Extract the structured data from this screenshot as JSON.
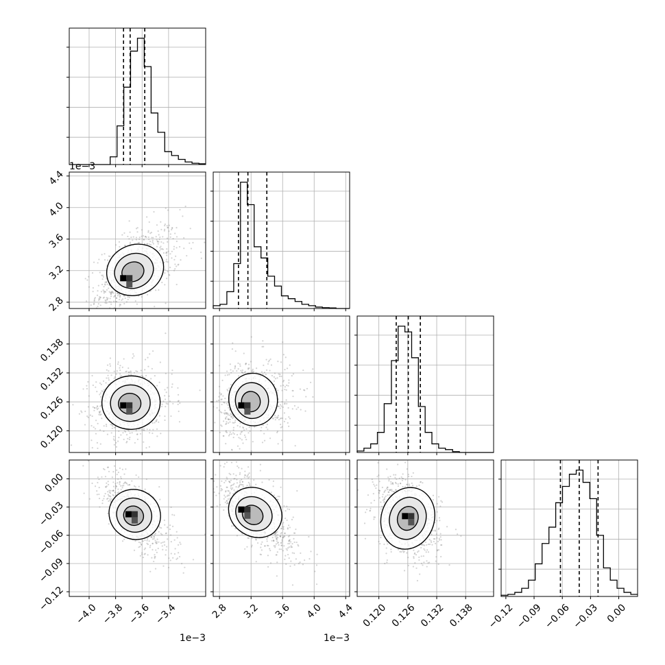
{
  "chart_data": {
    "type": "corner",
    "title": "",
    "colors": {
      "line": "#000000",
      "grid": "#b0b0b0",
      "points": "#808080",
      "background": "#ffffff"
    },
    "parameters": [
      {
        "index": 0,
        "range": [
          -4.15,
          -3.12
        ],
        "ticks": [
          -4.0,
          -3.8,
          -3.6,
          -3.4
        ],
        "tick_labels": [
          "−4.0",
          "−3.8",
          "−3.6",
          "−3.4"
        ],
        "offset_label": "1e−3",
        "scale": 0.001,
        "quantiles": [
          -3.74,
          -3.69,
          -3.58
        ]
      },
      {
        "index": 1,
        "range": [
          2.72,
          4.45
        ],
        "ticks": [
          2.8,
          3.2,
          3.6,
          4.0,
          4.4
        ],
        "tick_labels": [
          "2.8",
          "3.2",
          "3.6",
          "4.0",
          "4.4"
        ],
        "offset_label": "1e−3",
        "scale": 0.001,
        "quantiles": [
          3.04,
          3.16,
          3.4
        ]
      },
      {
        "index": 2,
        "range": [
          0.1155,
          0.1438
        ],
        "ticks": [
          0.12,
          0.126,
          0.132,
          0.138
        ],
        "tick_labels": [
          "0.120",
          "0.126",
          "0.132",
          "0.138"
        ],
        "offset_label": "",
        "scale": 1,
        "quantiles": [
          0.1236,
          0.1261,
          0.1286
        ]
      },
      {
        "index": 3,
        "range": [
          -0.125,
          0.02
        ],
        "ticks": [
          -0.12,
          -0.09,
          -0.06,
          -0.03,
          0.0
        ],
        "tick_labels": [
          "−0.12",
          "−0.09",
          "−0.06",
          "−0.03",
          "0.00"
        ],
        "offset_label": "",
        "scale": 1,
        "quantiles": [
          -0.062,
          -0.042,
          -0.022
        ]
      }
    ],
    "histograms": [
      {
        "param": 0,
        "bin_edges": [
          -4.15,
          -4.098,
          -4.047,
          -3.995,
          -3.944,
          -3.892,
          -3.841,
          -3.789,
          -3.738,
          -3.687,
          -3.635,
          -3.584,
          -3.532,
          -3.481,
          -3.429,
          -3.377,
          -3.326,
          -3.275,
          -3.223,
          -3.171,
          -3.12
        ],
        "counts": [
          0,
          0,
          0,
          0,
          0,
          0,
          30,
          150,
          300,
          440,
          490,
          380,
          200,
          125,
          50,
          35,
          20,
          10,
          5,
          3
        ]
      },
      {
        "param": 1,
        "bin_edges": [
          2.72,
          2.807,
          2.893,
          2.98,
          3.066,
          3.152,
          3.239,
          3.326,
          3.412,
          3.498,
          3.585,
          3.671,
          3.758,
          3.844,
          3.931,
          4.018,
          4.104,
          4.19,
          4.277,
          4.364,
          4.45
        ],
        "counts": [
          10,
          15,
          60,
          160,
          450,
          370,
          220,
          180,
          115,
          80,
          45,
          35,
          25,
          15,
          10,
          5,
          3,
          2,
          0,
          0
        ]
      },
      {
        "param": 2,
        "bin_edges": [
          0.1155,
          0.1169,
          0.1183,
          0.1197,
          0.1211,
          0.1226,
          0.124,
          0.1254,
          0.1268,
          0.1282,
          0.1296,
          0.131,
          0.1324,
          0.1338,
          0.1353,
          0.1367,
          0.1381,
          0.1395,
          0.1409,
          0.1423,
          0.1438
        ],
        "counts": [
          5,
          15,
          30,
          70,
          170,
          320,
          440,
          420,
          330,
          160,
          70,
          30,
          15,
          10,
          3,
          0,
          0,
          0,
          0,
          0
        ]
      },
      {
        "param": 3,
        "bin_edges": [
          -0.125,
          -0.1178,
          -0.1105,
          -0.1032,
          -0.096,
          -0.0888,
          -0.0815,
          -0.0742,
          -0.067,
          -0.0598,
          -0.0525,
          -0.0452,
          -0.038,
          -0.0308,
          -0.0235,
          -0.0162,
          -0.009,
          -0.0018,
          0.0055,
          0.0128,
          0.02
        ],
        "counts": [
          3,
          5,
          10,
          20,
          40,
          80,
          130,
          170,
          230,
          270,
          300,
          310,
          280,
          240,
          150,
          70,
          40,
          20,
          10,
          5
        ]
      }
    ],
    "densities_2d": [
      {
        "x_param": 0,
        "y_param": 1,
        "center": [
          -3.68,
          3.17
        ],
        "sx": 0.1,
        "sy": 0.18,
        "rho": 0.6,
        "skew": 0.5,
        "mode": [
          -3.74,
          3.1
        ],
        "levels": [
          0.39,
          0.86,
          0.99
        ]
      },
      {
        "x_param": 0,
        "y_param": 2,
        "center": [
          -3.7,
          0.1255
        ],
        "sx": 0.1,
        "sy": 0.0026,
        "rho": 0.1,
        "skew": 0.3,
        "mode": [
          -3.74,
          0.1252
        ],
        "levels": [
          0.39,
          0.86,
          0.99
        ]
      },
      {
        "x_param": 1,
        "y_param": 2,
        "center": [
          3.18,
          0.1258
        ],
        "sx": 0.14,
        "sy": 0.0026,
        "rho": 0.15,
        "skew": 0.6,
        "mode": [
          3.08,
          0.1252
        ],
        "levels": [
          0.39,
          0.86,
          0.99
        ]
      },
      {
        "x_param": 0,
        "y_param": 3,
        "center": [
          -3.67,
          -0.04
        ],
        "sx": 0.09,
        "sy": 0.016,
        "rho": -0.75,
        "skew": 0.3,
        "mode": [
          -3.7,
          -0.038
        ],
        "levels": [
          0.39,
          0.86,
          0.99
        ]
      },
      {
        "x_param": 1,
        "y_param": 3,
        "center": [
          3.2,
          -0.04
        ],
        "sx": 0.16,
        "sy": 0.016,
        "rho": -0.8,
        "skew": 0.6,
        "mode": [
          3.08,
          -0.033
        ],
        "levels": [
          0.39,
          0.86,
          0.99
        ]
      },
      {
        "x_param": 2,
        "y_param": 3,
        "center": [
          0.126,
          -0.042
        ],
        "sx": 0.0025,
        "sy": 0.017,
        "rho": -0.35,
        "skew": 0.0,
        "mode": [
          0.1255,
          -0.04
        ],
        "levels": [
          0.39,
          0.86,
          0.99
        ]
      }
    ],
    "sample_count": 700
  }
}
